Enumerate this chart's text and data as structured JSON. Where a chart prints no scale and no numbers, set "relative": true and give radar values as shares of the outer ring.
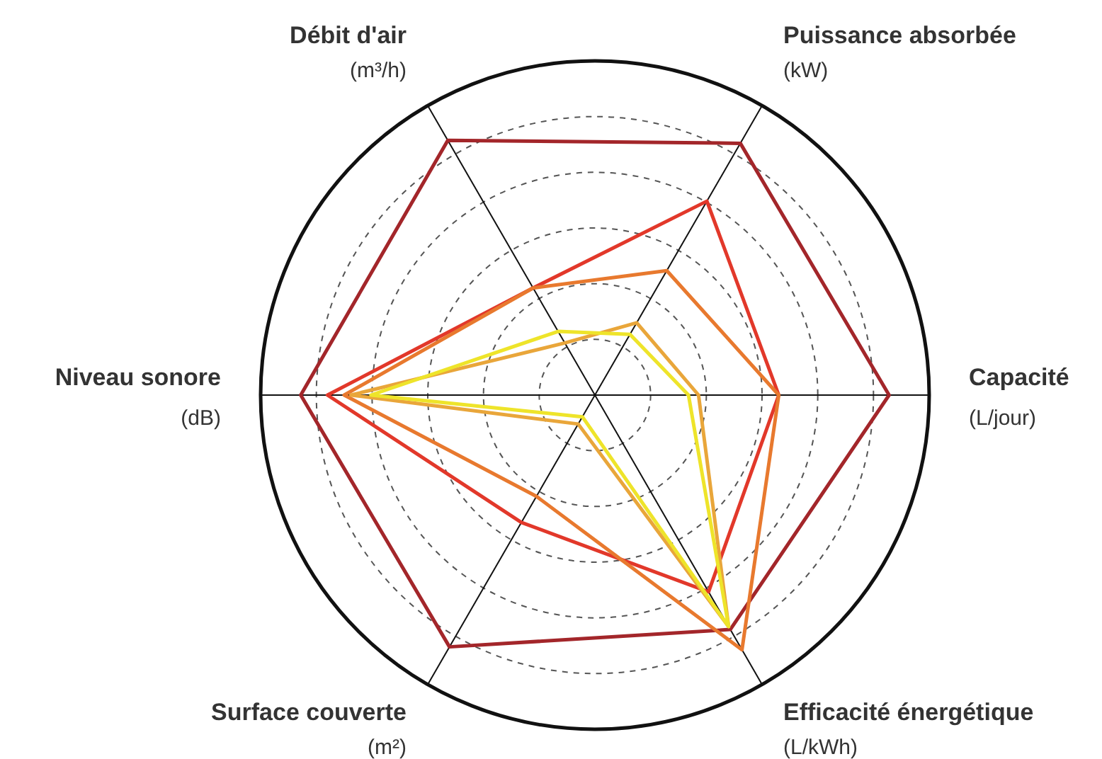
{
  "chart_data": {
    "type": "radar",
    "relative": true,
    "grid": true,
    "categories": [
      "Puissance absorbée\n(kW)",
      "Capacité\n(L/jour)",
      "Efficacité énergétique\n(L/kWh)",
      "Surface couverte\n(m²)",
      "Niveau sonore\n(dB)",
      "Débit d'air\n(m³/h)"
    ],
    "series": [
      {
        "color": "#a3262a",
        "values": [
          0.87,
          0.88,
          0.81,
          0.87,
          0.88,
          0.88
        ]
      },
      {
        "color": "#e2382a",
        "values": [
          0.67,
          0.55,
          0.68,
          0.44,
          0.8,
          0.37
        ]
      },
      {
        "color": "#e8792e",
        "values": [
          0.43,
          0.55,
          0.88,
          0.35,
          0.75,
          0.37
        ]
      },
      {
        "color": "#e9a63a",
        "values": [
          0.25,
          0.31,
          0.8,
          0.1,
          0.73,
          0.18
        ]
      },
      {
        "color": "#eee42a",
        "values": [
          0.21,
          0.28,
          0.8,
          0.075,
          0.67,
          0.22
        ]
      }
    ]
  }
}
